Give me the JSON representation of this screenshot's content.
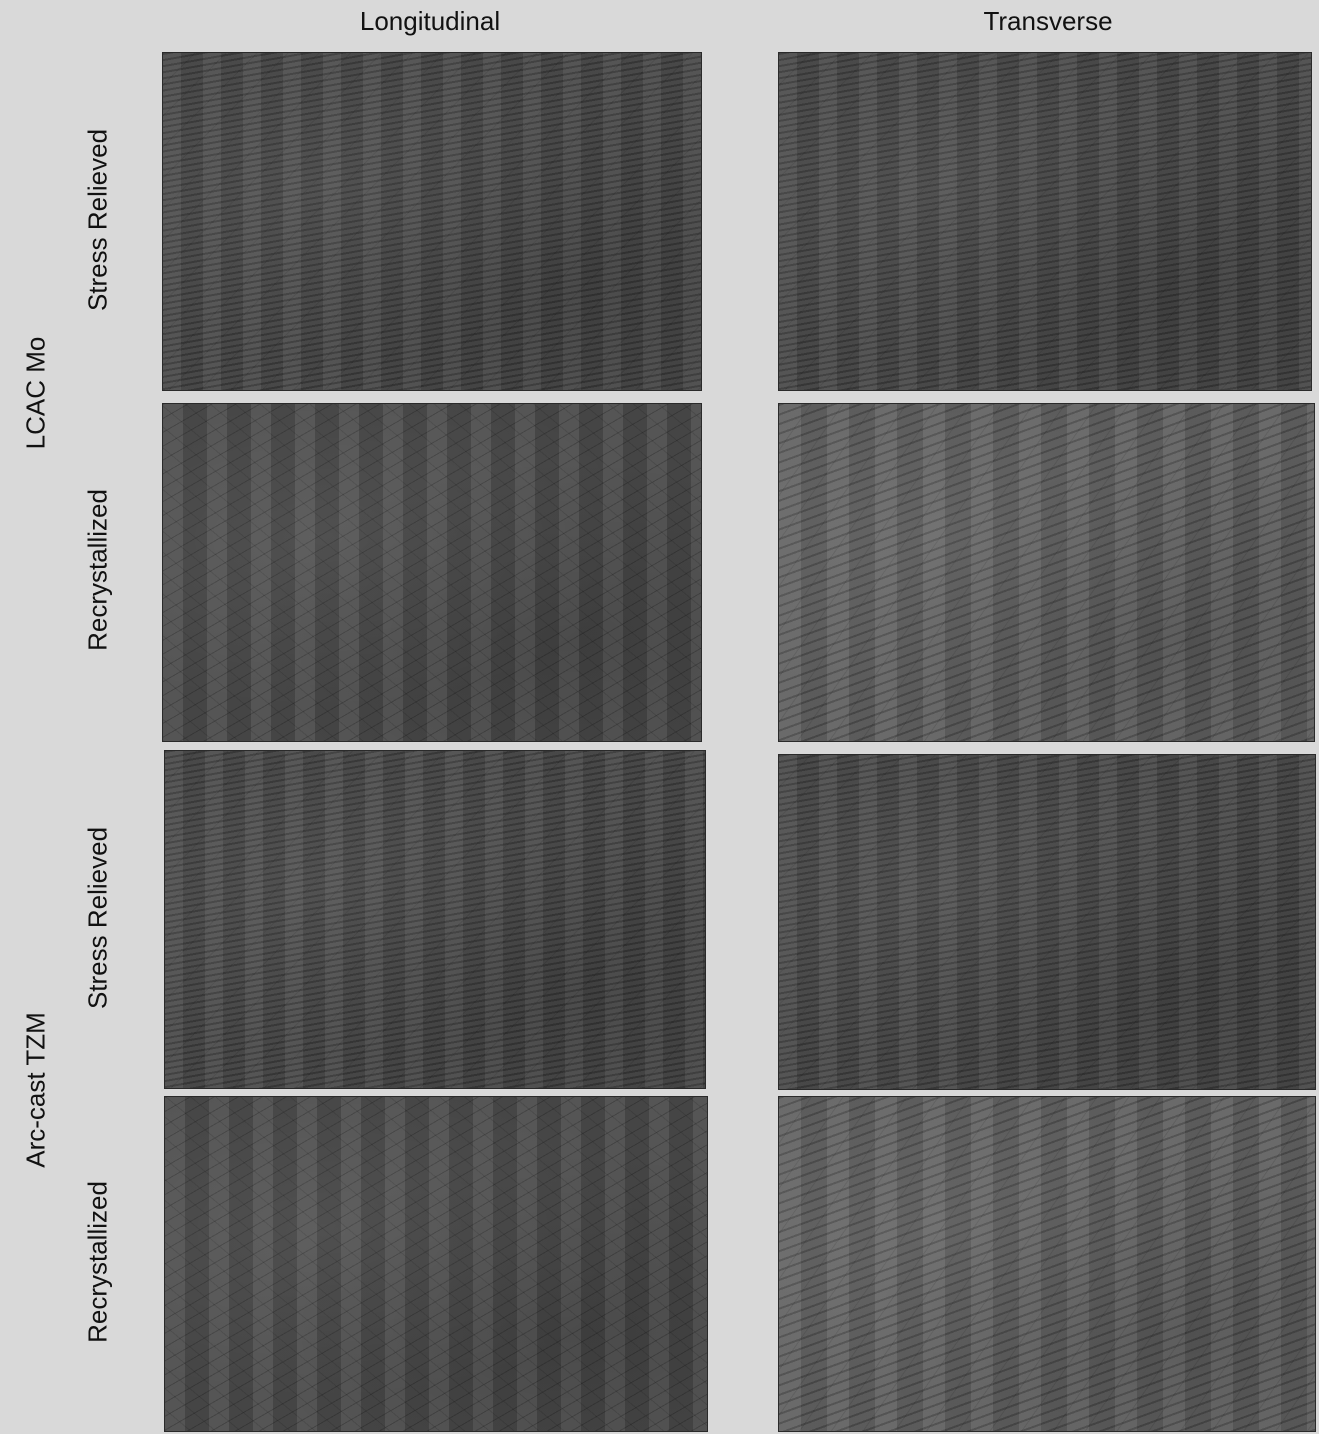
{
  "columns": [
    "Longitudinal",
    "Transverse"
  ],
  "materials": [
    "LCAC Mo",
    "Arc-cast TZM"
  ],
  "conditions": [
    "Stress Relieved",
    "Recrystallized",
    "Stress Relieved",
    "Recrystallized"
  ]
}
